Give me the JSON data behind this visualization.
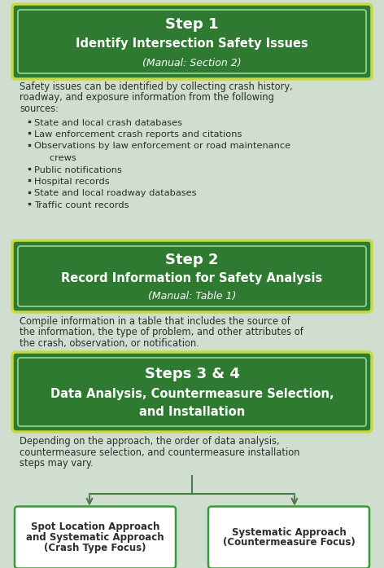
{
  "bg_color": "#cfdecf",
  "green_fill": "#2d7a30",
  "green_border_outer": "#c8d840",
  "green_border_inner": "#90d090",
  "text_white": "#ffffff",
  "text_dark": "#2d2d2d",
  "text_body_color": "#2d2d2d",
  "white_box_border": "#3a9a3a",
  "arrow_color": "#4a7a4a",
  "step1_title": "Step 1",
  "step1_subtitle": "Identify Intersection Safety Issues",
  "step1_ref": "(Manual: Section 2)",
  "step1_body_line1": "Safety issues can be identified by collecting crash history,",
  "step1_body_line2": "roadway, and exposure information from the following",
  "step1_body_line3": "sources:",
  "step1_bullets": [
    "State and local crash databases",
    "Law enforcement crash reports and citations",
    "Observations by law enforcement or road maintenance",
    "   crews",
    "Public notifications",
    "Hospital records",
    "State and local roadway databases",
    "Traffic count records"
  ],
  "step1_bullet_flags": [
    true,
    true,
    true,
    false,
    true,
    true,
    true,
    true
  ],
  "step2_title": "Step 2",
  "step2_subtitle": "Record Information for Safety Analysis",
  "step2_ref": "(Manual: Table 1)",
  "step2_body_line1": "Compile information in a table that includes the source of",
  "step2_body_line2": "the information, the type of problem, and other attributes of",
  "step2_body_line3": "the crash, observation, or notification.",
  "step34_title": "Steps 3 & 4",
  "step34_subtitle_line1": "Data Analysis, Countermeasure Selection,",
  "step34_subtitle_line2": "and Installation",
  "step34_body_line1": "Depending on the approach, the order of data analysis,",
  "step34_body_line2": "countermeasure selection, and countermeasure installation",
  "step34_body_line3": "steps may vary.",
  "box_left_line1": "Spot Location Approach",
  "box_left_line2": "and Systematic Approach",
  "box_left_line3": "(Crash Type Focus)",
  "box_right_line1": "Systematic Approach",
  "box_right_line2": "(Countermeasure Focus)"
}
